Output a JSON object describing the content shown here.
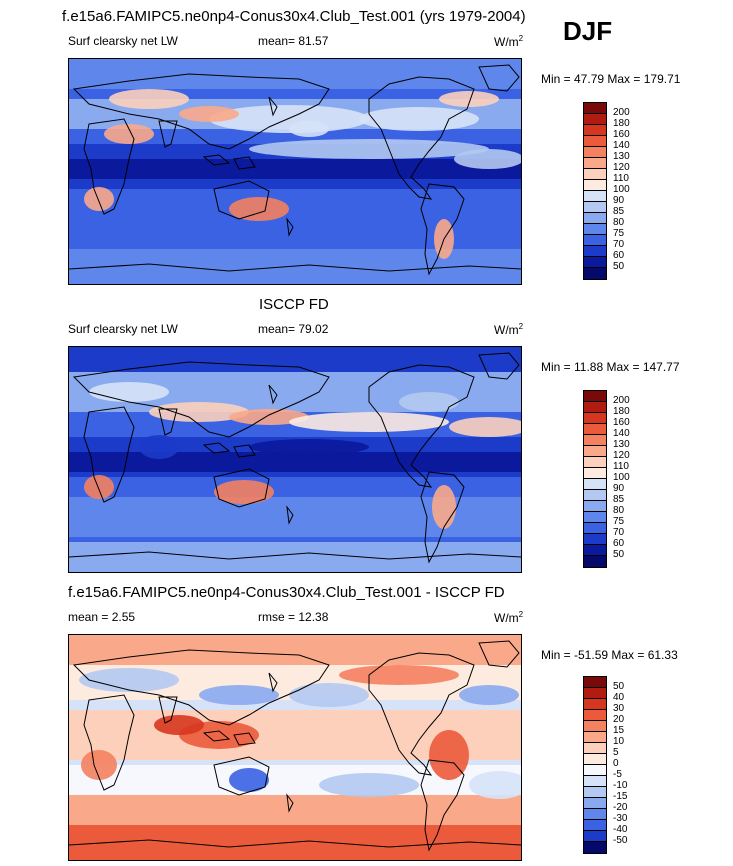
{
  "season": "DJF",
  "panels": [
    {
      "title": "f.e15a6.FAMIPC5.ne0np4-Conus30x4.Club_Test.001 (yrs 1979-2004)",
      "left_label": "Surf clearsky net LW",
      "center_label": "mean=  81.57",
      "units": "W/m",
      "units_sup": "2",
      "minmax": "Min =  47.79 Max = 179.71",
      "levels": [
        "200",
        "180",
        "160",
        "140",
        "130",
        "120",
        "110",
        "100",
        "90",
        "85",
        "80",
        "75",
        "70",
        "60",
        "50"
      ]
    },
    {
      "title": "ISCCP FD",
      "left_label": "Surf clearsky net LW",
      "center_label": "mean=  79.02",
      "units": "W/m",
      "units_sup": "2",
      "minmax": "Min =  11.88 Max = 147.77",
      "levels": [
        "200",
        "180",
        "160",
        "140",
        "130",
        "120",
        "110",
        "100",
        "90",
        "85",
        "80",
        "75",
        "70",
        "60",
        "50"
      ]
    },
    {
      "title": "f.e15a6.FAMIPC5.ne0np4-Conus30x4.Club_Test.001 - ISCCP FD",
      "left_label": "mean =   2.55",
      "center_label": "rmse =  12.38",
      "units": "W/m",
      "units_sup": "2",
      "minmax": "Min = -51.59 Max =  61.33",
      "levels": [
        "50",
        "40",
        "30",
        "20",
        "15",
        "10",
        "5",
        "0",
        "-5",
        "-10",
        "-15",
        "-20",
        "-30",
        "-40",
        "-50"
      ]
    }
  ],
  "colors": {
    "abs_scale": [
      "#7a0a0a",
      "#b01c12",
      "#d6361f",
      "#ec5a3c",
      "#f4815f",
      "#f9a98a",
      "#fcd0bb",
      "#fdebe0",
      "#d6e2f7",
      "#b3c9f1",
      "#8aaaf0",
      "#5f86eb",
      "#3a62e3",
      "#1c3bc9",
      "#0b1a9c",
      "#050a6a"
    ],
    "diff_scale": [
      "#7a0a0a",
      "#b01c12",
      "#d6361f",
      "#ec5a3c",
      "#f4815f",
      "#f9a98a",
      "#fcd0bb",
      "#fdebe0",
      "#f6f8fd",
      "#d6e2f7",
      "#b3c9f1",
      "#8aaaf0",
      "#5f86eb",
      "#3a62e3",
      "#1c3bc9",
      "#050a6a"
    ]
  },
  "chart_data": [
    {
      "type": "heatmap",
      "title": "f.e15a6.FAMIPC5.ne0np4-Conus30x4.Club_Test.001 (yrs 1979-2004)",
      "variable": "Surf clearsky net LW",
      "units": "W/m2",
      "mean": 81.57,
      "min": 47.79,
      "max": 179.71,
      "contour_levels": [
        50,
        60,
        70,
        75,
        80,
        85,
        90,
        100,
        110,
        120,
        130,
        140,
        160,
        180,
        200
      ]
    },
    {
      "type": "heatmap",
      "title": "ISCCP FD",
      "variable": "Surf clearsky net LW",
      "units": "W/m2",
      "mean": 79.02,
      "min": 11.88,
      "max": 147.77,
      "contour_levels": [
        50,
        60,
        70,
        75,
        80,
        85,
        90,
        100,
        110,
        120,
        130,
        140,
        160,
        180,
        200
      ]
    },
    {
      "type": "heatmap",
      "title": "f.e15a6.FAMIPC5.ne0np4-Conus30x4.Club_Test.001 - ISCCP FD",
      "units": "W/m2",
      "mean": 2.55,
      "rmse": 12.38,
      "min": -51.59,
      "max": 61.33,
      "contour_levels": [
        -50,
        -40,
        -30,
        -20,
        -15,
        -10,
        -5,
        0,
        5,
        10,
        15,
        20,
        30,
        40,
        50
      ]
    }
  ]
}
